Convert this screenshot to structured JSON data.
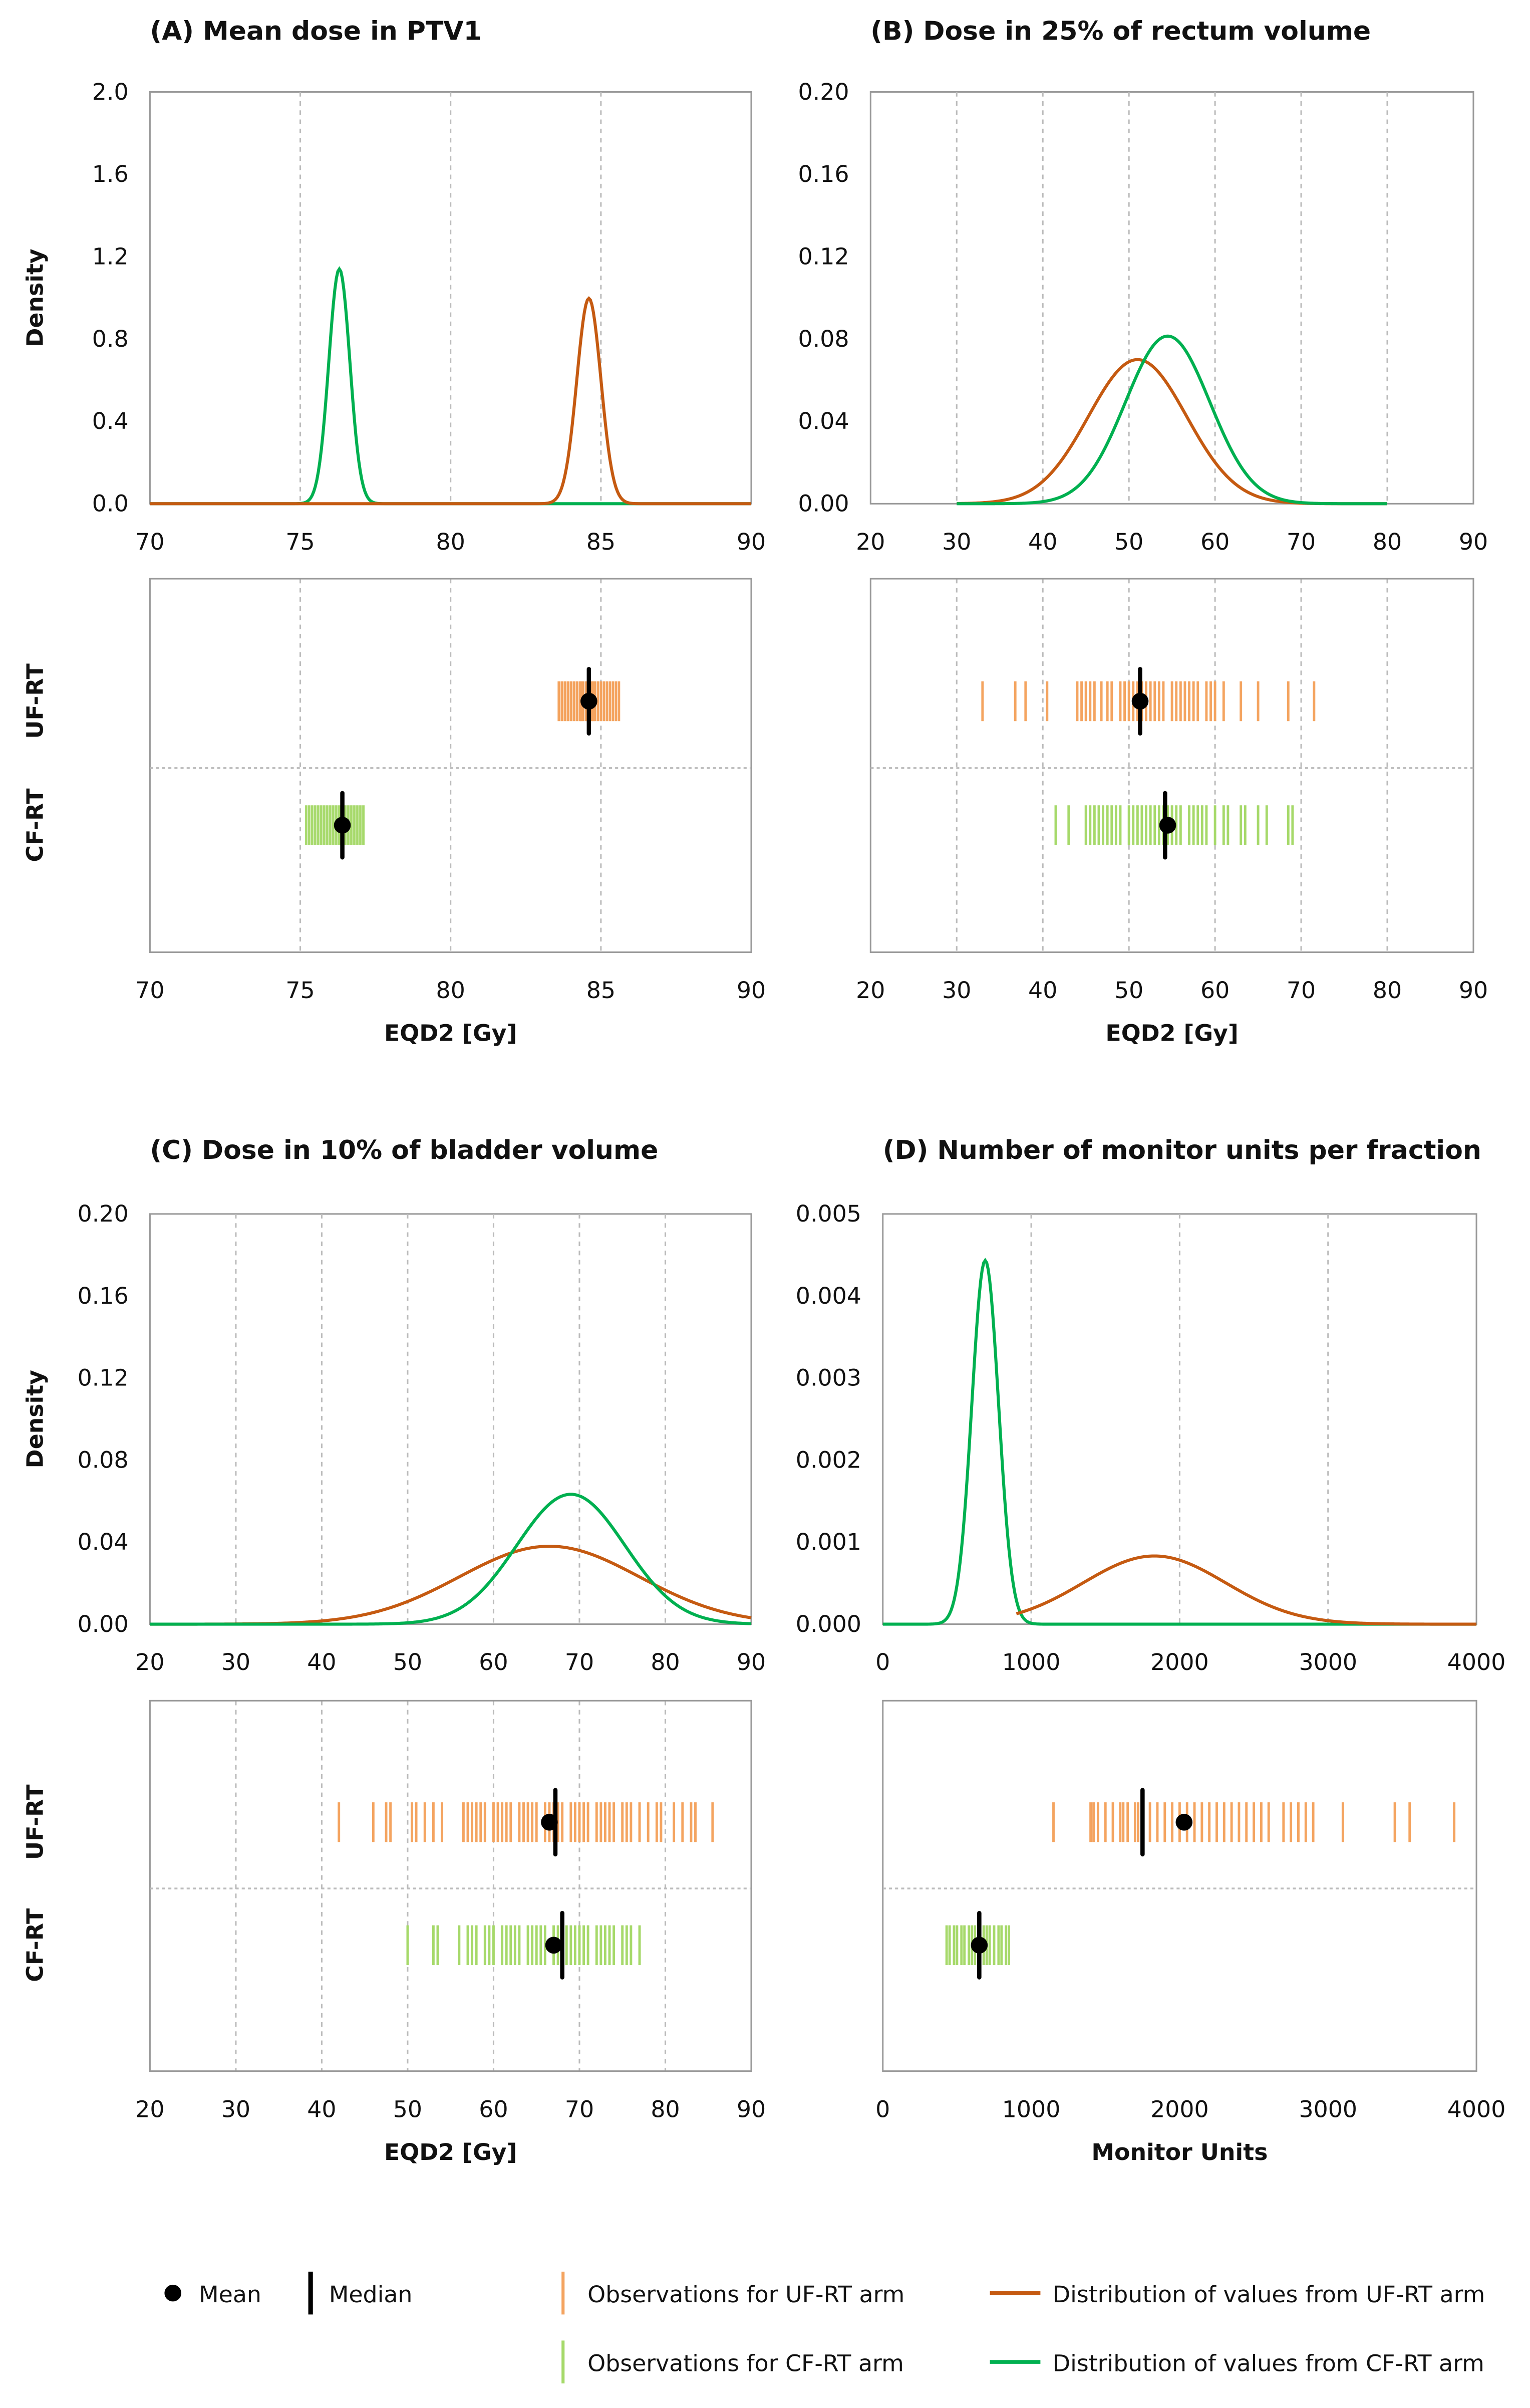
{
  "chart_data": [
    {
      "id": "A",
      "type": "line",
      "title": "(A) Mean dose in PTV1",
      "ylabel": "Density",
      "xlabel": "EQD2 [Gy]",
      "xlim": [
        70,
        90
      ],
      "xticks": [
        "70",
        "75",
        "80",
        "85",
        "90"
      ],
      "ylim": [
        0,
        2.0
      ],
      "yticks": [
        "0.0",
        "0.4",
        "0.8",
        "1.2",
        "1.6",
        "2.0"
      ],
      "density": [
        {
          "arm": "CF-RT",
          "mean": 76.3,
          "sd": 0.35,
          "from": 70,
          "to": 90
        },
        {
          "arm": "UF-RT",
          "mean": 84.6,
          "sd": 0.4,
          "from": 70,
          "to": 90
        }
      ],
      "strip": [
        {
          "arm": "UF-RT",
          "mean": 84.6,
          "median": 84.6,
          "obs": [
            83.6,
            83.7,
            83.8,
            83.9,
            84.0,
            84.1,
            84.2,
            84.3,
            84.35,
            84.4,
            84.5,
            84.55,
            84.6,
            84.7,
            84.75,
            84.8,
            84.9,
            85.0,
            85.1,
            85.2,
            85.3,
            85.4,
            85.5,
            85.6
          ]
        },
        {
          "arm": "CF-RT",
          "mean": 76.4,
          "median": 76.4,
          "obs": [
            75.2,
            75.3,
            75.4,
            75.5,
            75.6,
            75.7,
            75.8,
            75.9,
            76.0,
            76.1,
            76.2,
            76.3,
            76.4,
            76.5,
            76.6,
            76.7,
            76.8,
            76.9,
            77.0,
            77.1
          ]
        }
      ]
    },
    {
      "id": "B",
      "type": "line",
      "title": "(B) Dose in 25% of rectum volume",
      "ylabel": "",
      "xlabel": "EQD2 [Gy]",
      "xlim": [
        20,
        90
      ],
      "xticks": [
        "20",
        "30",
        "40",
        "50",
        "60",
        "70",
        "80",
        "90"
      ],
      "ylim": [
        0,
        0.2
      ],
      "yticks": [
        "0.00",
        "0.04",
        "0.08",
        "0.12",
        "0.16",
        "0.20"
      ],
      "density": [
        {
          "arm": "UF-RT",
          "mean": 51,
          "sd": 5.7,
          "from": 30,
          "to": 80
        },
        {
          "arm": "CF-RT",
          "mean": 54.5,
          "sd": 4.9,
          "from": 30,
          "to": 80
        }
      ],
      "strip": [
        {
          "arm": "UF-RT",
          "mean": 51.3,
          "median": 51.3,
          "obs": [
            33,
            36.8,
            38,
            40.5,
            44,
            44.5,
            45,
            45.5,
            46,
            46.8,
            47.5,
            48,
            49,
            49.5,
            50,
            50.5,
            51,
            51.5,
            52,
            52.5,
            53,
            53.5,
            54,
            55,
            55.5,
            56,
            56.5,
            57,
            57.5,
            58,
            59,
            59.5,
            60,
            61,
            63,
            65,
            68.5,
            71.5
          ]
        },
        {
          "arm": "CF-RT",
          "mean": 54.5,
          "median": 54.2,
          "obs": [
            41.5,
            43,
            45,
            45.5,
            46,
            46.5,
            47,
            47.5,
            48,
            48.5,
            49,
            50,
            50.5,
            51,
            51.5,
            52,
            52.5,
            53,
            53.5,
            54,
            54.5,
            55,
            55.5,
            56,
            57,
            57.5,
            58,
            58.5,
            59,
            60,
            61,
            61.5,
            63,
            63.5,
            65,
            66,
            68.5,
            69
          ]
        }
      ]
    },
    {
      "id": "C",
      "type": "line",
      "title": "(C) Dose in 10% of bladder volume",
      "ylabel": "Density",
      "xlabel": "EQD2 [Gy]",
      "xlim": [
        20,
        90
      ],
      "xticks": [
        "20",
        "30",
        "40",
        "50",
        "60",
        "70",
        "80",
        "90"
      ],
      "ylim": [
        0,
        0.2
      ],
      "yticks": [
        "0.00",
        "0.04",
        "0.08",
        "0.12",
        "0.16",
        "0.20"
      ],
      "density": [
        {
          "arm": "UF-RT",
          "mean": 66.5,
          "sd": 10.5,
          "from": 20,
          "to": 90
        },
        {
          "arm": "CF-RT",
          "mean": 69,
          "sd": 6.3,
          "from": 20,
          "to": 90
        }
      ],
      "strip": [
        {
          "arm": "UF-RT",
          "mean": 66.5,
          "median": 67.2,
          "obs": [
            42,
            46,
            47.5,
            48,
            50.5,
            51,
            52,
            53,
            54,
            56.5,
            57,
            57.5,
            58,
            58.5,
            59,
            60,
            60.5,
            61,
            61.5,
            62,
            63,
            63.5,
            64,
            64.5,
            65,
            66,
            66.5,
            67,
            67.5,
            68,
            69,
            69.5,
            70,
            70.5,
            71,
            72,
            72.5,
            73,
            73.5,
            74,
            75,
            75.5,
            76,
            77,
            78,
            79,
            79.5,
            81,
            82,
            83,
            83.5,
            85.5
          ]
        },
        {
          "arm": "CF-RT",
          "mean": 67,
          "median": 68,
          "obs": [
            50,
            53,
            53.5,
            56,
            57,
            57.5,
            58,
            59,
            59.5,
            60,
            61,
            61.5,
            62,
            62.5,
            63,
            64,
            64.5,
            65,
            65.5,
            66,
            67,
            67.5,
            68,
            68.5,
            69,
            69.5,
            70,
            70.5,
            71,
            72,
            72.5,
            73,
            73.5,
            74,
            75,
            75.5,
            76,
            77
          ]
        }
      ]
    },
    {
      "id": "D",
      "type": "line",
      "title": "(D) Number of monitor units per fraction",
      "ylabel": "",
      "xlabel": "Monitor Units",
      "xlim": [
        0,
        4000
      ],
      "xticks": [
        "0",
        "1000",
        "2000",
        "3000",
        "4000"
      ],
      "ylim": [
        0,
        0.005
      ],
      "yticks": [
        "0.000",
        "0.001",
        "0.002",
        "0.003",
        "0.004",
        "0.005"
      ],
      "density": [
        {
          "arm": "CF-RT",
          "mean": 690,
          "sd": 90,
          "from": 0,
          "to": 4000
        },
        {
          "arm": "UF-RT",
          "mean": 1830,
          "sd": 480,
          "from": 900,
          "to": 4000
        }
      ],
      "strip": [
        {
          "arm": "UF-RT",
          "mean": 2030,
          "median": 1750,
          "obs": [
            1150,
            1400,
            1420,
            1450,
            1500,
            1550,
            1600,
            1620,
            1650,
            1700,
            1720,
            1750,
            1800,
            1850,
            1900,
            1950,
            2000,
            2050,
            2100,
            2150,
            2200,
            2250,
            2300,
            2350,
            2400,
            2450,
            2500,
            2550,
            2600,
            2700,
            2750,
            2800,
            2850,
            2900,
            3100,
            3450,
            3550,
            3850
          ]
        },
        {
          "arm": "CF-RT",
          "mean": 650,
          "median": 650,
          "obs": [
            430,
            450,
            480,
            500,
            530,
            550,
            580,
            600,
            620,
            650,
            680,
            700,
            720,
            750,
            780,
            800,
            830,
            850
          ]
        }
      ]
    }
  ],
  "arms": [
    "UF-RT",
    "CF-RT"
  ],
  "legend": {
    "mean": "Mean",
    "median": "Median",
    "obs_uf": "Observations for UF-RT arm",
    "obs_cf": "Observations for CF-RT arm",
    "dist_uf": "Distribution of values from UF-RT arm",
    "dist_cf": "Distribution of values from CF-RT arm"
  },
  "colors": {
    "uf_line": "#C55A11",
    "cf_line": "#00B050",
    "uf_obs": "#F4A460",
    "cf_obs": "#A6D96A"
  }
}
